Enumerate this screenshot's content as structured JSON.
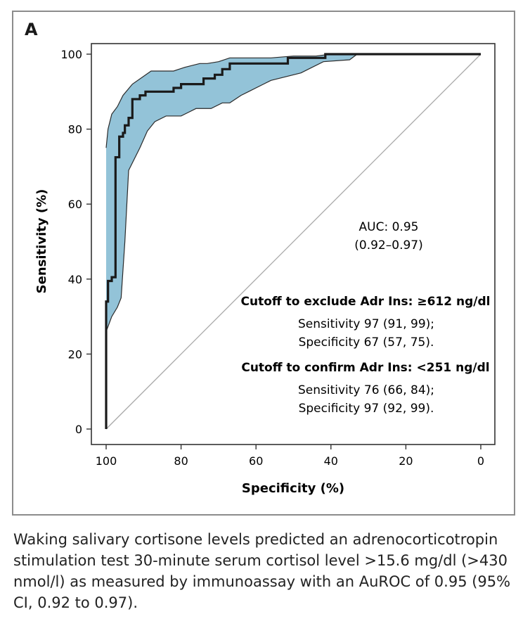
{
  "panel_label": "A",
  "caption": "Waking salivary cortisone levels predicted an adrenocorticotropin stimulation test 30-minute serum cortisol level >15.6 mg/dl (>430 nmol/l) as measured by immunoassay with an AuROC of 0.95 (95% CI, 0.92 to 0.97).",
  "colors": {
    "ci_band": "#93c3d8",
    "roc_line": "#1a1a1a",
    "diagonal": "#a8a8a8",
    "axis": "#333333"
  },
  "chart_data": {
    "type": "line",
    "title": "",
    "xlabel": "Specificity (%)",
    "ylabel": "Sensitivity (%)",
    "xlim": [
      100,
      0
    ],
    "ylim": [
      0,
      100
    ],
    "xticks": [
      100,
      80,
      60,
      40,
      20,
      0
    ],
    "yticks": [
      0,
      20,
      40,
      60,
      80,
      100
    ],
    "xtick_labels": [
      "100",
      "80",
      "60",
      "40",
      "20",
      "0"
    ],
    "ytick_labels": [
      "0",
      "20",
      "40",
      "60",
      "80",
      "100"
    ],
    "series": [
      {
        "name": "ROC curve",
        "x": [
          100,
          100,
          99.5,
          99.5,
          98.5,
          98.5,
          97.5,
          97.5,
          96.5,
          96.5,
          95.5,
          95.5,
          95,
          95,
          94,
          94,
          93,
          93,
          91,
          91,
          89.5,
          89.5,
          82,
          82,
          80,
          80,
          78,
          78,
          74,
          74,
          71,
          71,
          69,
          69,
          67,
          67,
          51.5,
          51.5,
          41.5,
          41.5,
          33,
          0
        ],
        "y": [
          0,
          34,
          34,
          39.5,
          39.5,
          40.5,
          40.5,
          72.5,
          72.5,
          78,
          78,
          79,
          79,
          81,
          81,
          83,
          83,
          88,
          88,
          89,
          89,
          90,
          90,
          91,
          91,
          92,
          92,
          92,
          92,
          93.5,
          93.5,
          94.5,
          94.5,
          96,
          96,
          97.5,
          97.5,
          99,
          99,
          100,
          100,
          100
        ]
      },
      {
        "name": "95% CI upper",
        "x": [
          100,
          99.5,
          98.5,
          97,
          95.5,
          93,
          88,
          86,
          82,
          79,
          75,
          73,
          70,
          67,
          60,
          56,
          50,
          44,
          40,
          33,
          0
        ],
        "y": [
          75,
          80,
          84,
          86,
          89,
          92,
          95.5,
          95.5,
          95.5,
          96.5,
          97.5,
          97.5,
          98,
          99,
          99,
          99,
          99.5,
          99.5,
          100,
          100,
          100
        ]
      },
      {
        "name": "95% CI lower",
        "x": [
          100,
          98.5,
          97,
          96,
          95,
          94,
          91,
          89,
          87,
          84,
          80,
          78,
          76,
          72,
          69,
          67,
          64,
          62,
          58,
          56,
          48,
          46,
          42,
          35,
          33,
          0
        ],
        "y": [
          26,
          30,
          32.5,
          35,
          50,
          69,
          75,
          79.5,
          82,
          83.5,
          83.5,
          84.5,
          85.5,
          85.5,
          87,
          87,
          89,
          90,
          92,
          93,
          95,
          96,
          98,
          98.5,
          100,
          100
        ]
      },
      {
        "name": "Reference",
        "x": [
          100,
          0
        ],
        "y": [
          0,
          100
        ]
      }
    ],
    "annotations": {
      "auc": "AUC: 0.95",
      "auc_ci": "(0.92–0.97)",
      "exclude_title": "Cutoff to exclude Adr Ins: ≥612 ng/dl",
      "exclude_sens": "Sensitivity 97 (91, 99);",
      "exclude_spec": "Specificity 67 (57, 75).",
      "confirm_title": "Cutoff to confirm Adr Ins: <251 ng/dl",
      "confirm_sens": "Sensitivity 76 (66, 84);",
      "confirm_spec": "Specificity 97 (92, 99)."
    }
  }
}
